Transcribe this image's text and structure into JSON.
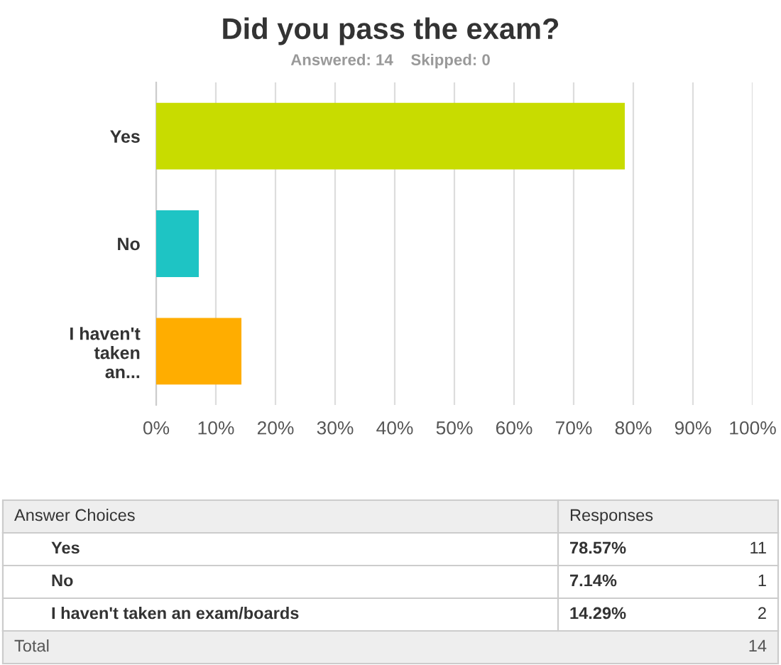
{
  "chart_data": {
    "type": "bar",
    "orientation": "horizontal",
    "title": "Did you pass the exam?",
    "subtitle": "Answered: 14    Skipped: 0",
    "categories": [
      "Yes",
      "No",
      "I haven't taken an..."
    ],
    "values": [
      78.57,
      7.14,
      14.29
    ],
    "colors": [
      "#c8dc00",
      "#1ec4c4",
      "#ffad00"
    ],
    "xlim": [
      0,
      100
    ],
    "xticks": [
      {
        "value": 0,
        "label": "0%"
      },
      {
        "value": 10,
        "label": "10%"
      },
      {
        "value": 20,
        "label": "20%"
      },
      {
        "value": 30,
        "label": "30%"
      },
      {
        "value": 40,
        "label": "40%"
      },
      {
        "value": 50,
        "label": "50%"
      },
      {
        "value": 60,
        "label": "60%"
      },
      {
        "value": 70,
        "label": "70%"
      },
      {
        "value": 80,
        "label": "80%"
      },
      {
        "value": 90,
        "label": "90%"
      },
      {
        "value": 100,
        "label": "100%"
      }
    ],
    "grid": "x",
    "legend": false,
    "annotations": [
      "Answer Choices",
      "Responses",
      "Yes",
      "No",
      "I haven't taken an exam/boards",
      "11",
      "1",
      "2",
      "Total",
      "14",
      "78.57%",
      "7.14%",
      "14.29%"
    ]
  }
}
